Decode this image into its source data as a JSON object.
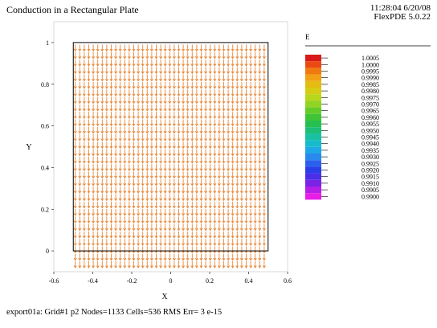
{
  "header": {
    "title": "Conduction in a Rectangular Plate",
    "timestamp": "11:28:04 6/20/08",
    "software": "FlexPDE 5.0.22"
  },
  "footer": {
    "status": "export01a:  Grid#1  p2  Nodes=1133 Cells=536 RMS Err= 3 e-15"
  },
  "chart_data": {
    "type": "vector",
    "title": "Conduction in a Rectangular Plate",
    "xlabel": "X",
    "ylabel": "Y",
    "xlim": [
      -0.6,
      0.6
    ],
    "ylim": [
      -0.1,
      1.1
    ],
    "x_ticks": [
      -0.6,
      -0.4,
      -0.2,
      0,
      0.2,
      0.4,
      0.6
    ],
    "y_ticks": [
      0,
      0.2,
      0.4,
      0.6,
      0.8,
      1
    ],
    "x_tick_labels": [
      "-0.6",
      "-0.4",
      "-0.2",
      "0",
      "0.2",
      "0.4",
      "0.6"
    ],
    "y_tick_labels": [
      "0",
      "0.2",
      "0.4",
      "0.6",
      "0.8",
      "1"
    ],
    "domain": {
      "x": [
        -0.5,
        0.5
      ],
      "y": [
        0,
        1
      ]
    },
    "field": {
      "arrow_direction": "down",
      "x_range": [
        -0.49,
        0.48
      ],
      "y_range": [
        -0.05,
        0.99
      ],
      "columns": 43,
      "rows": 30,
      "color": "#e8883a"
    },
    "legend": {
      "variable": "E",
      "levels": [
        {
          "label": "1.0005",
          "color": "#d81a1a"
        },
        {
          "label": "1.0000",
          "color": "#ea4a12"
        },
        {
          "label": "0.9995",
          "color": "#f07a10"
        },
        {
          "label": "0.9990",
          "color": "#f2a014"
        },
        {
          "label": "0.9985",
          "color": "#e4bc12"
        },
        {
          "label": "0.9980",
          "color": "#d6cc14"
        },
        {
          "label": "0.9975",
          "color": "#b8d61a"
        },
        {
          "label": "0.9970",
          "color": "#92d424"
        },
        {
          "label": "0.9965",
          "color": "#64cc2a"
        },
        {
          "label": "0.9960",
          "color": "#3ec436"
        },
        {
          "label": "0.9955",
          "color": "#26c04e"
        },
        {
          "label": "0.9950",
          "color": "#1cbe78"
        },
        {
          "label": "0.9945",
          "color": "#18c0a4"
        },
        {
          "label": "0.9940",
          "color": "#16bccc"
        },
        {
          "label": "0.9935",
          "color": "#1ea8e6"
        },
        {
          "label": "0.9930",
          "color": "#2a88ee"
        },
        {
          "label": "0.9925",
          "color": "#2a62ee"
        },
        {
          "label": "0.9920",
          "color": "#2c3ee8"
        },
        {
          "label": "0.9915",
          "color": "#4a2ee8"
        },
        {
          "label": "0.9910",
          "color": "#7a22e6"
        },
        {
          "label": "0.9905",
          "color": "#b41ee6"
        },
        {
          "label": "0.9900",
          "color": "#e81ee8"
        }
      ]
    }
  }
}
